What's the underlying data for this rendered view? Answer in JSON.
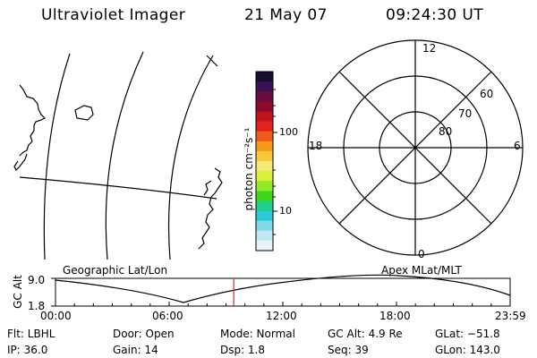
{
  "header": {
    "title": "Ultraviolet Imager",
    "date": "21 May 07",
    "time": "09:24:30 UT"
  },
  "colorbar": {
    "label": "photon cm⁻²s⁻¹",
    "ticks": [
      "100",
      "10"
    ],
    "colors": [
      "#1a0f2e",
      "#3b1057",
      "#6a0d3e",
      "#8b0a2a",
      "#c1121f",
      "#e0231b",
      "#f05a1a",
      "#f59a1a",
      "#f7c93a",
      "#f5e87a",
      "#d9f23a",
      "#8fe82a",
      "#3fd61c",
      "#1fcf8a",
      "#29c9d6",
      "#7fd8ea",
      "#bfe8f2",
      "#e8f4f8"
    ]
  },
  "polar": {
    "labels": {
      "top": "12",
      "bottom": "0",
      "left": "18",
      "right": "6"
    },
    "lat_labels": [
      "60",
      "70",
      "80"
    ]
  },
  "timeline": {
    "ylabel": "GC Alt",
    "y_top": "9.0",
    "y_bottom": "1.8",
    "left_title": "Geographic Lat/Lon",
    "right_title": "Apex MLat/MLT",
    "x_ticks": [
      "00:00",
      "06:00",
      "12:00",
      "18:00",
      "23:59"
    ],
    "current_time_fraction": 0.392
  },
  "info": {
    "flt": "Flt: LBHL",
    "ip": "IP: 36.0",
    "door": "Door: Open",
    "gain": "Gain: 14",
    "mode": "Mode: Normal",
    "dsp": "Dsp:    1.8",
    "gc_alt": "GC Alt: 4.9 Re",
    "seq": "Seq: 39",
    "glat": "GLat: −51.8",
    "glon": "GLon: 143.0"
  }
}
